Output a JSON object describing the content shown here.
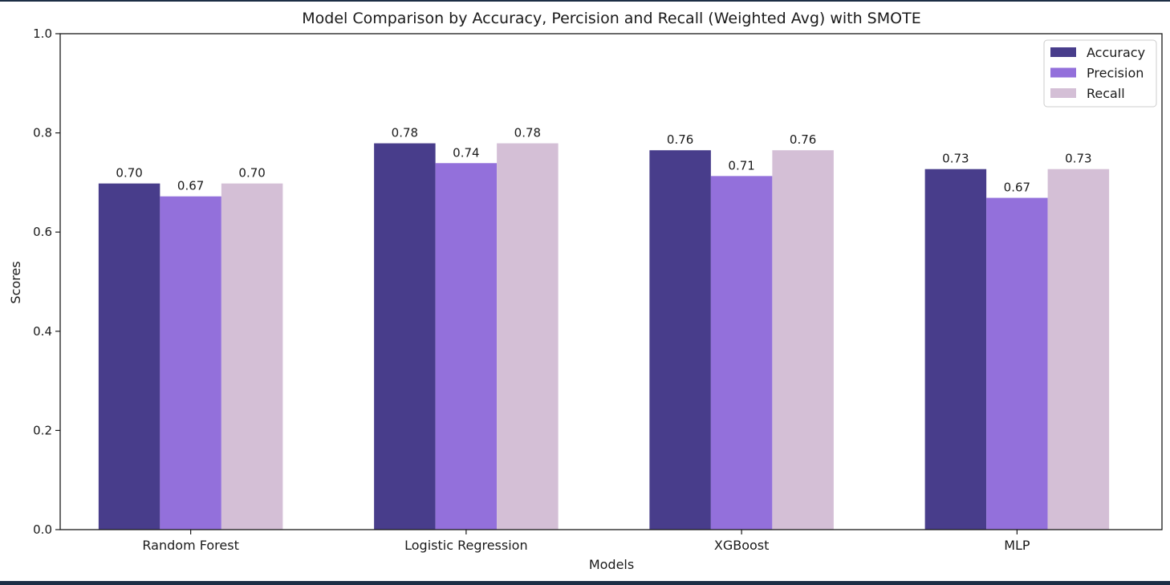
{
  "chart_data": {
    "type": "bar",
    "title": "Model Comparison by Accuracy, Percision and Recall (Weighted Avg) with SMOTE",
    "xlabel": "Models",
    "ylabel": "Scores",
    "ylim": [
      0,
      1.0
    ],
    "yticks": [
      "0.0",
      "0.2",
      "0.4",
      "0.6",
      "0.8",
      "1.0"
    ],
    "categories": [
      "Random Forest",
      "Logistic Regression",
      "XGBoost",
      "MLP"
    ],
    "series": [
      {
        "name": "Accuracy",
        "color": "#483d8b",
        "values": [
          0.698,
          0.779,
          0.765,
          0.727
        ],
        "labels": [
          "0.70",
          "0.78",
          "0.76",
          "0.73"
        ]
      },
      {
        "name": "Precision",
        "color": "#9370db",
        "values": [
          0.672,
          0.739,
          0.713,
          0.669
        ],
        "labels": [
          "0.67",
          "0.74",
          "0.71",
          "0.67"
        ]
      },
      {
        "name": "Recall",
        "color": "#d4bfd6",
        "values": [
          0.698,
          0.779,
          0.765,
          0.727
        ],
        "labels": [
          "0.70",
          "0.78",
          "0.76",
          "0.73"
        ]
      }
    ],
    "legend": "top-right",
    "grid": false
  }
}
